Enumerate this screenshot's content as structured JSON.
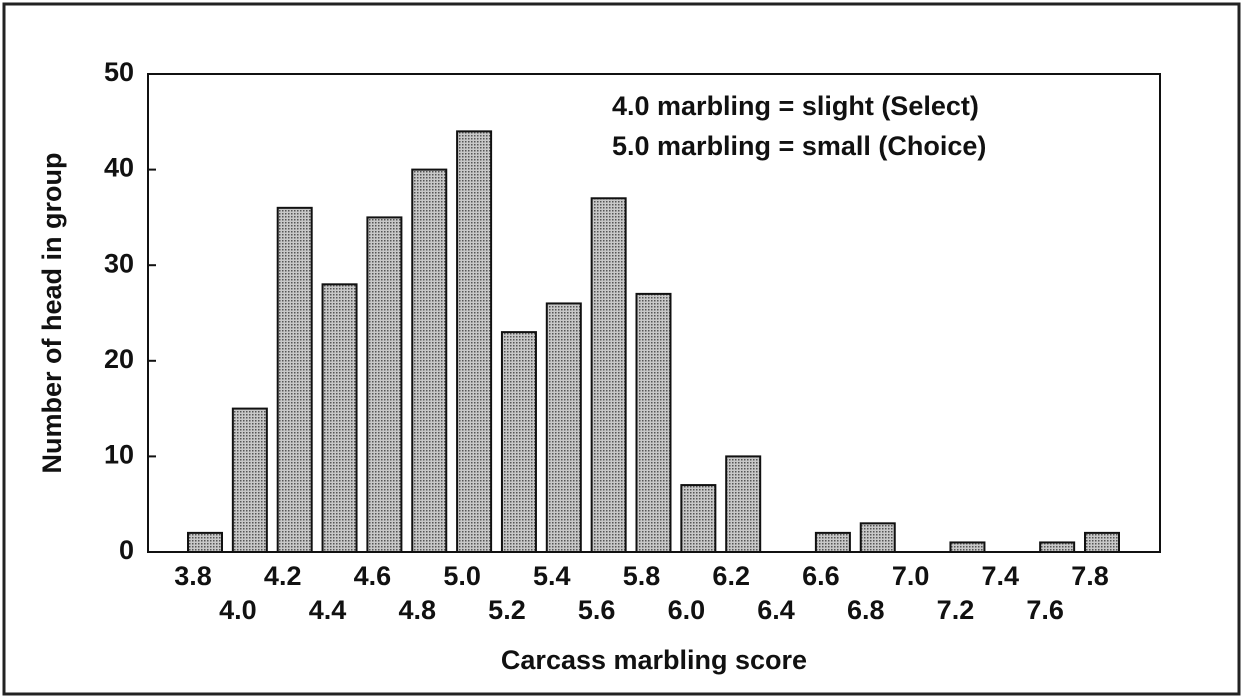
{
  "chart_data": {
    "type": "bar",
    "categories": [
      "3.8",
      "4.0",
      "4.2",
      "4.4",
      "4.6",
      "4.8",
      "5.0",
      "5.2",
      "5.4",
      "5.6",
      "5.8",
      "6.0",
      "6.2",
      "6.4",
      "6.6",
      "6.8",
      "7.0",
      "7.2",
      "7.4",
      "7.6",
      "7.8"
    ],
    "values": [
      2,
      15,
      36,
      28,
      35,
      40,
      44,
      23,
      26,
      37,
      27,
      7,
      10,
      0,
      2,
      3,
      0,
      1,
      0,
      1,
      2
    ],
    "color": "#9a9a9a",
    "ylim": [
      0,
      50
    ],
    "yticks": [
      0,
      10,
      20,
      30,
      40,
      50
    ],
    "xlabel": "Carcass marbling score",
    "ylabel": "Number of head in group",
    "annotations": [
      "4.0 marbling = slight (Select)",
      "5.0 marbling = small (Choice)"
    ]
  }
}
